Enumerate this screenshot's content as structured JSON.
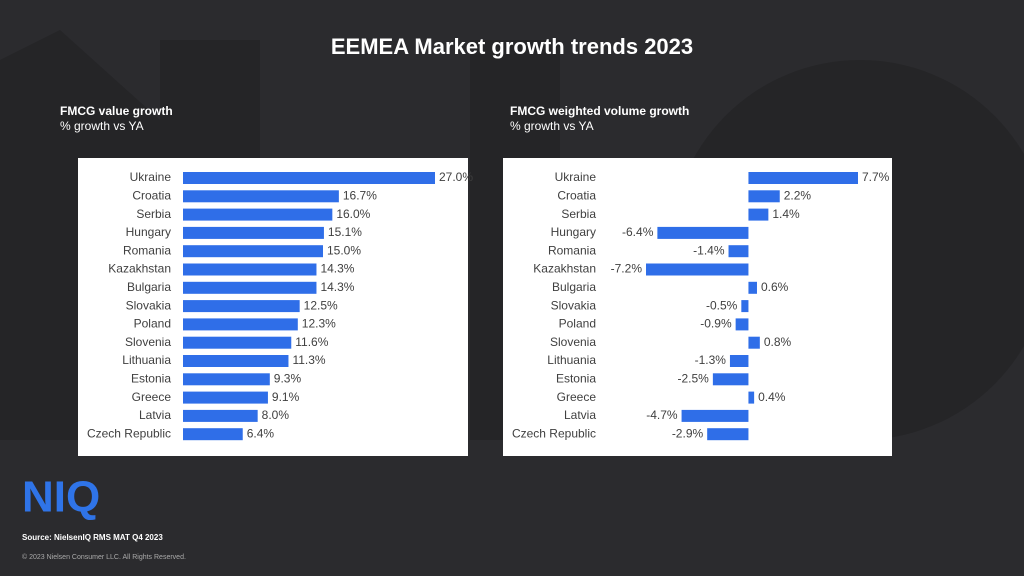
{
  "title": "EEMEA Market growth trends 2023",
  "logo": "NIQ",
  "source": "Source: NielsenIQ  RMS  MAT Q4 2023",
  "copyright": "© 2023  Nielsen Consumer LLC. All Rights Reserved.",
  "chart_data": [
    {
      "type": "bar",
      "orientation": "horizontal",
      "title": "FMCG value growth",
      "subtitle": "% growth vs YA",
      "color": "#2f6ee8",
      "categories": [
        "Ukraine",
        "Croatia",
        "Serbia",
        "Hungary",
        "Romania",
        "Kazakhstan",
        "Bulgaria",
        "Slovakia",
        "Poland",
        "Slovenia",
        "Lithuania",
        "Estonia",
        "Greece",
        "Latvia",
        "Czech Republic"
      ],
      "values": [
        27.0,
        16.7,
        16.0,
        15.1,
        15.0,
        14.3,
        14.3,
        12.5,
        12.3,
        11.6,
        11.3,
        9.3,
        9.1,
        8.0,
        6.4
      ],
      "value_labels": [
        "27.0%",
        "16.7%",
        "16.0%",
        "15.1%",
        "15.0%",
        "14.3%",
        "14.3%",
        "12.5%",
        "12.3%",
        "11.6%",
        "11.3%",
        "9.3%",
        "9.1%",
        "8.0%",
        "6.4%"
      ]
    },
    {
      "type": "bar",
      "orientation": "horizontal",
      "title": "FMCG weighted volume growth",
      "subtitle": "% growth vs YA",
      "color": "#2f6ee8",
      "categories": [
        "Ukraine",
        "Croatia",
        "Serbia",
        "Hungary",
        "Romania",
        "Kazakhstan",
        "Bulgaria",
        "Slovakia",
        "Poland",
        "Slovenia",
        "Lithuania",
        "Estonia",
        "Greece",
        "Latvia",
        "Czech Republic"
      ],
      "values": [
        7.7,
        2.2,
        1.4,
        -6.4,
        -1.4,
        -7.2,
        0.6,
        -0.5,
        -0.9,
        0.8,
        -1.3,
        -2.5,
        0.4,
        -4.7,
        -2.9
      ],
      "value_labels": [
        "7.7%",
        "2.2%",
        "1.4%",
        "-6.4%",
        "-1.4%",
        "-7.2%",
        "0.6%",
        "-0.5%",
        "-0.9%",
        "0.8%",
        "-1.3%",
        "-2.5%",
        "0.4%",
        "-4.7%",
        "-2.9%"
      ]
    }
  ]
}
